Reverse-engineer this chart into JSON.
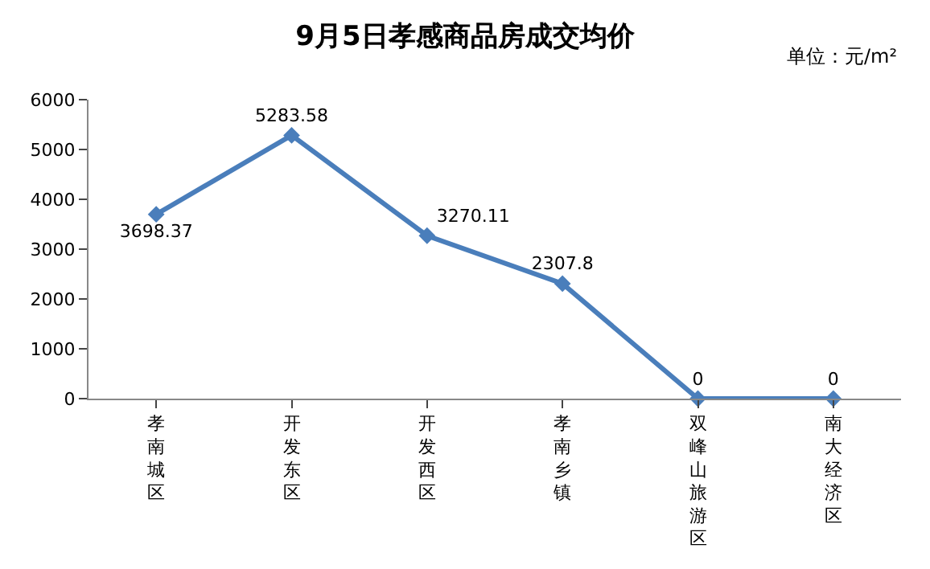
{
  "chart_data": {
    "type": "line",
    "title": "9月5日孝感商品房成交均价",
    "annotations": [
      "单位：元/m²"
    ],
    "categories": [
      "孝南城区",
      "开发东区",
      "开发西区",
      "孝南乡镇",
      "双峰山旅游区",
      "南大经济区"
    ],
    "series": [
      {
        "color": "#4a7ebb",
        "values": [
          3698.37,
          5283.58,
          3270.11,
          2307.8,
          0,
          0
        ]
      }
    ],
    "ylim": [
      0,
      6000
    ],
    "yticks": [
      0,
      1000,
      2000,
      3000,
      4000,
      5000,
      6000
    ],
    "data_labels": true,
    "marker": "diamond",
    "line_style": "solid"
  }
}
